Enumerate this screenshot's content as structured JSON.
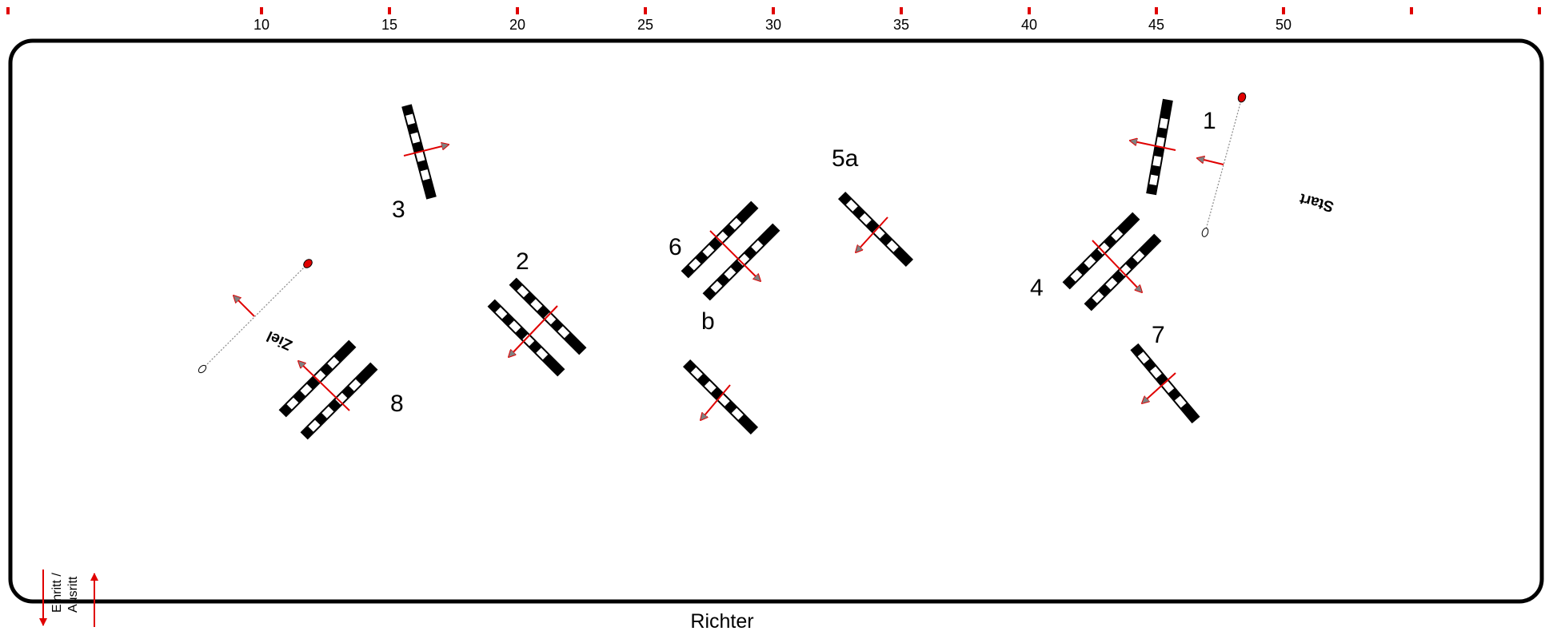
{
  "ruler": {
    "labels": [
      "10",
      "15",
      "20",
      "25",
      "30",
      "35",
      "40",
      "45",
      "50"
    ],
    "marker_color": "#e00000"
  },
  "obstacles": [
    {
      "number": "1"
    },
    {
      "number": "2"
    },
    {
      "number": "3"
    },
    {
      "number": "4"
    },
    {
      "number": "5a"
    },
    {
      "number": "b"
    },
    {
      "number": "6"
    },
    {
      "number": "7"
    },
    {
      "number": "8"
    }
  ],
  "start_line": {
    "label": "Start"
  },
  "finish_line": {
    "label": "Ziel"
  },
  "entrance": {
    "line1": "Einritt /",
    "line2": "Ausritt"
  },
  "judge": {
    "label": "Richter"
  },
  "colors": {
    "arrow": "#e00000",
    "arrow_head": "#808080",
    "pole_dark": "#000000",
    "pole_light": "#ffffff",
    "flag": "#e00000",
    "arena_border": "#000000"
  }
}
